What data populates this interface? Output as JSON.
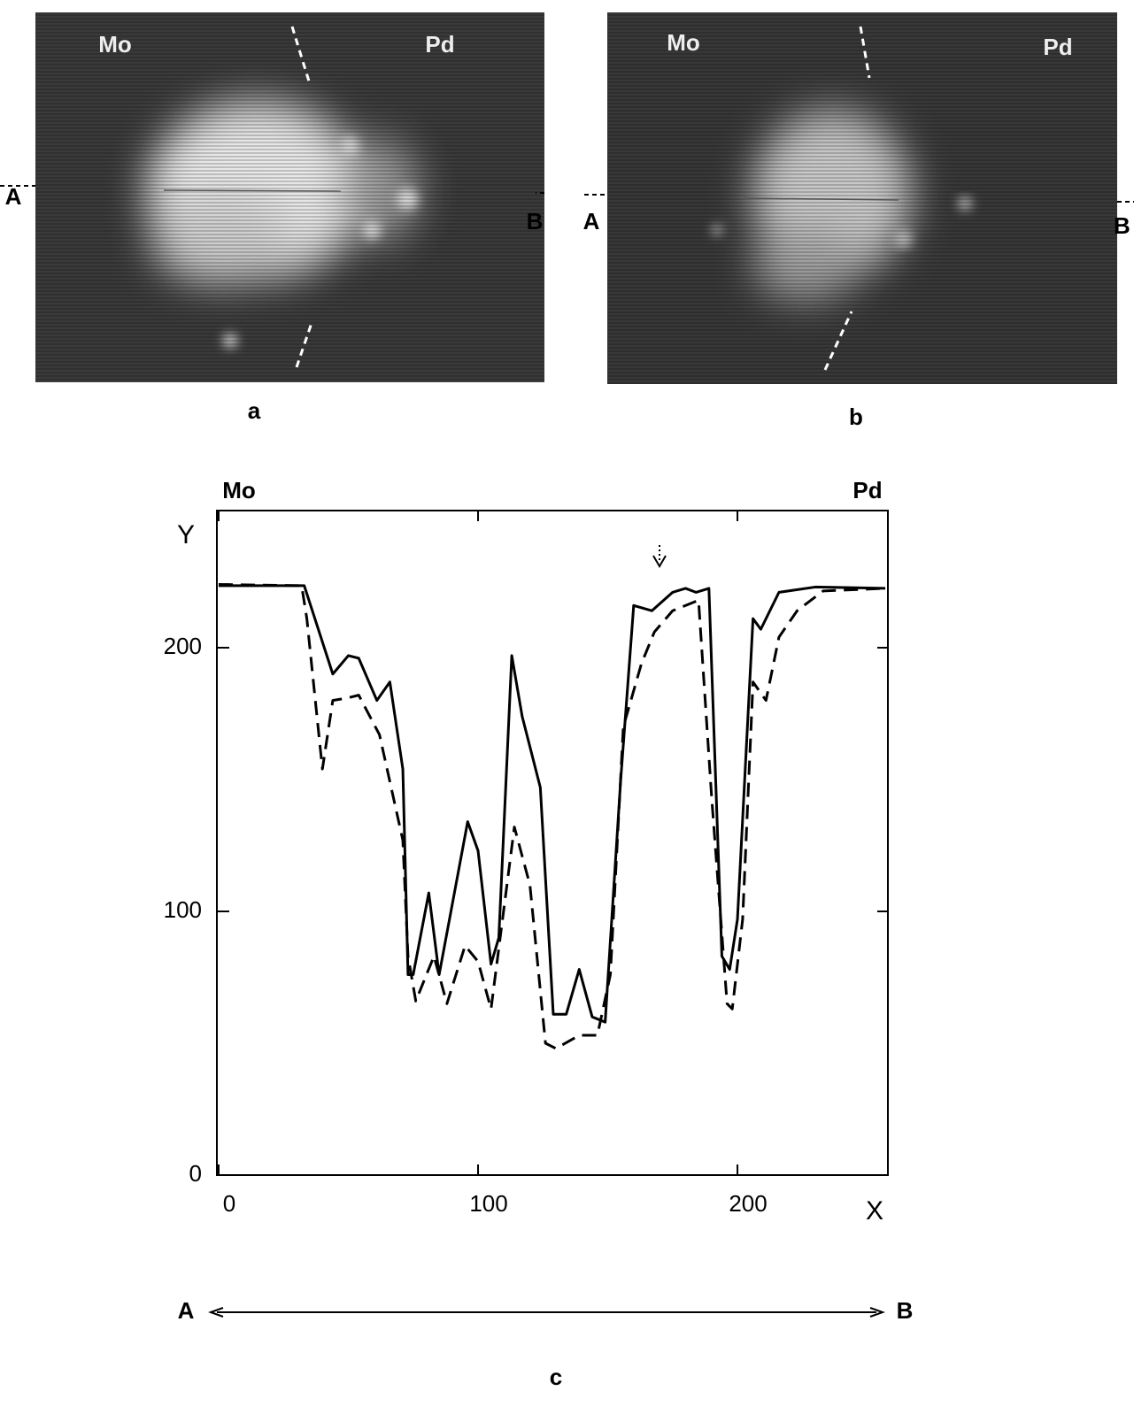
{
  "panels": [
    {
      "caption": "a",
      "left_label": "Mo",
      "right_label": "Pd",
      "line_start": "A",
      "line_end": "B"
    },
    {
      "caption": "b",
      "left_label": "Mo",
      "right_label": "Pd",
      "line_start": "A",
      "line_end": "B"
    }
  ],
  "chart_data": {
    "type": "line",
    "left_label": "Mo",
    "right_label": "Pd",
    "xlabel": "X",
    "ylabel": "Y",
    "xlim": [
      0,
      258
    ],
    "ylim": [
      0,
      252
    ],
    "xticks": [
      0,
      100,
      200
    ],
    "yticks": [
      0,
      100,
      200
    ],
    "direction_start": "A",
    "direction_end": "B",
    "caption": "c",
    "series": [
      {
        "style": "solid",
        "color": "#000000",
        "x": [
          0,
          33,
          44,
          50,
          54,
          61,
          66,
          71,
          73,
          75,
          81,
          85,
          96,
          100,
          105,
          108,
          113,
          117,
          124,
          129,
          134,
          139,
          144,
          149,
          155,
          160,
          167,
          175,
          180,
          184,
          189,
          194,
          197,
          200,
          206,
          209,
          216,
          230,
          257
        ],
        "values": [
          223.5,
          223.5,
          190,
          197,
          196,
          180,
          187,
          154,
          76,
          76,
          107,
          76,
          134,
          123,
          80,
          90,
          197,
          174,
          147,
          61,
          61,
          78,
          60,
          58,
          150,
          216,
          214,
          221,
          222.5,
          221,
          222.5,
          83,
          78,
          97,
          211,
          207,
          221,
          223,
          222.5
        ]
      },
      {
        "style": "dashed",
        "color": "#000000",
        "x": [
          0,
          32,
          34,
          40,
          44,
          50,
          54,
          62,
          71,
          73,
          76,
          83,
          88,
          95,
          100,
          105,
          114,
          120,
          126,
          130,
          139,
          146,
          151,
          156,
          163,
          168,
          175,
          185,
          190,
          196,
          198,
          202,
          206,
          211,
          216,
          223,
          233,
          257
        ],
        "values": [
          224,
          223.5,
          211,
          154,
          180,
          181,
          182,
          167,
          127,
          83,
          66,
          83,
          65,
          87,
          81,
          63,
          132,
          110,
          50,
          48,
          53,
          53,
          76,
          170,
          194,
          206,
          214,
          218,
          144,
          65,
          63,
          97,
          187,
          180,
          204,
          214,
          221.5,
          222.5
        ]
      }
    ]
  }
}
